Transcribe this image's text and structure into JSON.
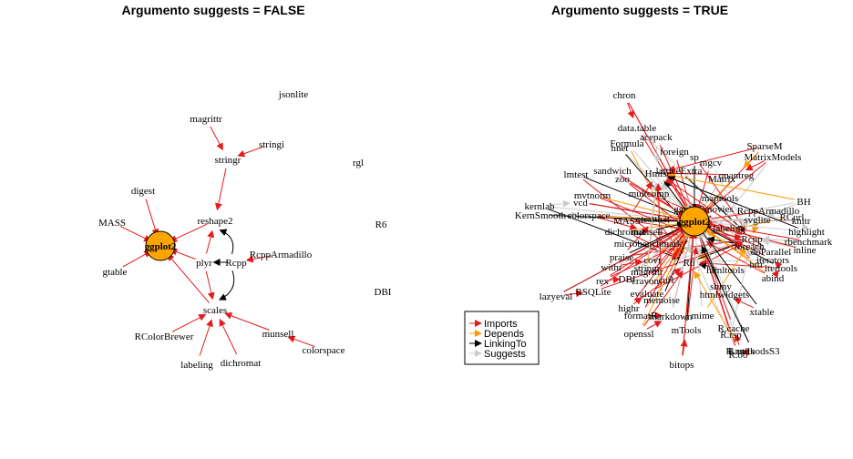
{
  "panels": [
    {
      "title": "Argumento suggests = FALSE",
      "center": "ggplot2",
      "nodes": [
        "jsonlite",
        "magrittr",
        "stringi",
        "stringr",
        "rgl",
        "digest",
        "reshape2",
        "MASS",
        "R6",
        "plyr",
        "Rcpp",
        "RcppArmadillo",
        "gtable",
        "DBI",
        "scales",
        "RColorBrewer",
        "munsell",
        "colorspace",
        "labeling",
        "dichromat"
      ],
      "edges": [
        {
          "from": "magrittr",
          "to": "stringr",
          "type": "Imports"
        },
        {
          "from": "stringi",
          "to": "stringr",
          "type": "Imports"
        },
        {
          "from": "stringr",
          "to": "reshape2",
          "type": "Imports"
        },
        {
          "from": "digest",
          "to": "ggplot2",
          "type": "Imports"
        },
        {
          "from": "MASS",
          "to": "ggplot2",
          "type": "Imports"
        },
        {
          "from": "reshape2",
          "to": "ggplot2",
          "type": "Imports"
        },
        {
          "from": "gtable",
          "to": "ggplot2",
          "type": "Imports"
        },
        {
          "from": "plyr",
          "to": "ggplot2",
          "type": "Imports"
        },
        {
          "from": "scales",
          "to": "ggplot2",
          "type": "Imports"
        },
        {
          "from": "plyr",
          "to": "reshape2",
          "type": "Imports"
        },
        {
          "from": "Rcpp",
          "to": "reshape2",
          "type": "LinkingTo"
        },
        {
          "from": "Rcpp",
          "to": "plyr",
          "type": "LinkingTo"
        },
        {
          "from": "RcppArmadillo",
          "to": "Rcpp",
          "type": "Imports"
        },
        {
          "from": "Rcpp",
          "to": "scales",
          "type": "LinkingTo"
        },
        {
          "from": "plyr",
          "to": "scales",
          "type": "Imports"
        },
        {
          "from": "RColorBrewer",
          "to": "scales",
          "type": "Imports"
        },
        {
          "from": "munsell",
          "to": "scales",
          "type": "Imports"
        },
        {
          "from": "colorspace",
          "to": "munsell",
          "type": "Imports"
        },
        {
          "from": "labeling",
          "to": "scales",
          "type": "Imports"
        },
        {
          "from": "dichromat",
          "to": "scales",
          "type": "Imports"
        }
      ]
    },
    {
      "title": "Argumento suggests = TRUE",
      "center": "ggplot2",
      "nodes": [
        "chron",
        "data.table",
        "acepack",
        "Formula",
        "nnet",
        "foreign",
        "sp",
        "SparseM",
        "MatrixModels",
        "sandwich",
        "Hmisc",
        "latticeExtra",
        "quantreg",
        "lmtest",
        "zoo",
        "Matrix",
        "mgcv",
        "BH",
        "kernlab",
        "mvtnorm",
        "vcd",
        "multcomp",
        "maptools",
        "RcppArmadillo",
        "RCurl",
        "KernSmooth",
        "colorspace",
        "MASS",
        "testthat",
        "ggplot2movies",
        "knitr",
        "svglite",
        "highlight",
        "dichromat",
        "munsell",
        "labeling",
        "rbenchmark",
        "microbenchmark",
        "Rcpp",
        "foreach",
        "inline",
        "praise",
        "doParallel",
        "iterators",
        "withr",
        "covr",
        "R6",
        "httr",
        "itertools",
        "rex",
        "DBI",
        "stringr",
        "magrittr",
        "htmltools",
        "abind",
        "lazyeval",
        "RSQLite",
        "crayon",
        "curl",
        "shiny",
        "htmlwidgets",
        "evaluate",
        "memoise",
        "highr",
        "formatR",
        "markdown",
        "mime",
        "xtable",
        "openssl",
        "mTools",
        "R.cache",
        "R.rsp",
        "R.oo",
        "R.utils",
        "R.methodsS3",
        "bitops"
      ]
    }
  ],
  "legend": {
    "items": [
      {
        "label": "Imports",
        "color": "#e41a1c"
      },
      {
        "label": "Depends",
        "color": "#ff9900"
      },
      {
        "label": "LinkingTo",
        "color": "#000000"
      },
      {
        "label": "Suggests",
        "color": "#cccccc"
      }
    ]
  },
  "colors": {
    "center_fill": "#ffa500",
    "imports": "#e41a1c",
    "depends": "#ff9900",
    "linkingto": "#000000",
    "suggests": "#cccccc"
  }
}
